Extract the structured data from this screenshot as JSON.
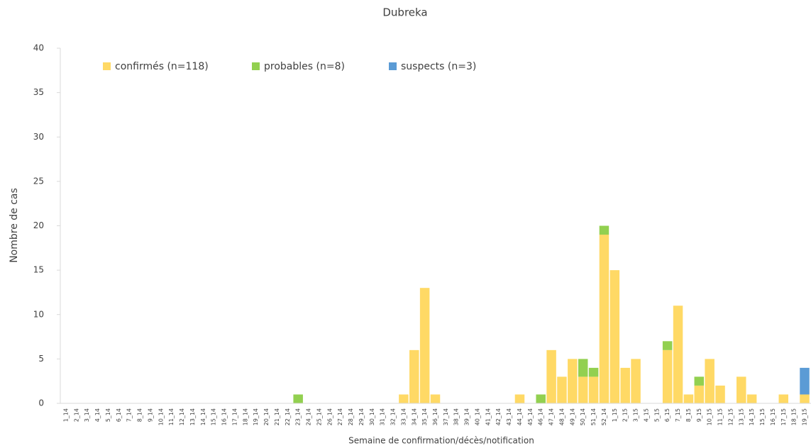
{
  "chart_data": {
    "type": "stacked_bar",
    "title": "Dubreka",
    "x_label": "Semaine de confirmation/décès/notification",
    "y_label": "Nombre de cas",
    "categories": [
      "1_14",
      "2_14",
      "3_14",
      "4_14",
      "5_14",
      "6_14",
      "7_14",
      "8_14",
      "9_14",
      "10_14",
      "11_14",
      "12_14",
      "13_14",
      "14_14",
      "15_14",
      "16_14",
      "17_14",
      "18_14",
      "19_14",
      "20_14",
      "21_14",
      "22_14",
      "23_14",
      "24_14",
      "25_14",
      "26_14",
      "27_14",
      "28_14",
      "29_14",
      "30_14",
      "31_14",
      "32_14",
      "33_14",
      "34_14",
      "35_14",
      "36_14",
      "37_14",
      "38_14",
      "39_14",
      "40_14",
      "41_14",
      "42_14",
      "43_14",
      "44_14",
      "45_14",
      "46_14",
      "47_14",
      "48_14",
      "49_14",
      "50_14",
      "51_14",
      "52_14",
      "1_15",
      "2_15",
      "3_15",
      "4_15",
      "5_15",
      "6_15",
      "7_15",
      "8_15",
      "9_15",
      "10_15",
      "11_15",
      "12_15",
      "13_15",
      "14_15",
      "15_15",
      "16_15",
      "17_15",
      "18_15",
      "19_15"
    ],
    "series": [
      {
        "name": "confirmés (n=118)",
        "color": "#ffd965",
        "values": [
          0,
          0,
          0,
          0,
          0,
          0,
          0,
          0,
          0,
          0,
          0,
          0,
          0,
          0,
          0,
          0,
          0,
          0,
          0,
          0,
          0,
          0,
          0,
          0,
          0,
          0,
          0,
          0,
          0,
          0,
          0,
          0,
          1,
          6,
          13,
          1,
          0,
          0,
          0,
          0,
          0,
          0,
          0,
          1,
          0,
          0,
          6,
          3,
          5,
          3,
          3,
          19,
          15,
          4,
          5,
          0,
          0,
          6,
          11,
          1,
          2,
          5,
          2,
          0,
          3,
          1,
          0,
          0,
          1,
          0,
          1
        ]
      },
      {
        "name": "probables (n=8)",
        "color": "#92d050",
        "values": [
          0,
          0,
          0,
          0,
          0,
          0,
          0,
          0,
          0,
          0,
          0,
          0,
          0,
          0,
          0,
          0,
          0,
          0,
          0,
          0,
          0,
          0,
          1,
          0,
          0,
          0,
          0,
          0,
          0,
          0,
          0,
          0,
          0,
          0,
          0,
          0,
          0,
          0,
          0,
          0,
          0,
          0,
          0,
          0,
          0,
          1,
          0,
          0,
          0,
          2,
          1,
          1,
          0,
          0,
          0,
          0,
          0,
          1,
          0,
          0,
          1,
          0,
          0,
          0,
          0,
          0,
          0,
          0,
          0,
          0,
          0
        ]
      },
      {
        "name": "suspects (n=3)",
        "color": "#5b9bd5",
        "values": [
          0,
          0,
          0,
          0,
          0,
          0,
          0,
          0,
          0,
          0,
          0,
          0,
          0,
          0,
          0,
          0,
          0,
          0,
          0,
          0,
          0,
          0,
          0,
          0,
          0,
          0,
          0,
          0,
          0,
          0,
          0,
          0,
          0,
          0,
          0,
          0,
          0,
          0,
          0,
          0,
          0,
          0,
          0,
          0,
          0,
          0,
          0,
          0,
          0,
          0,
          0,
          0,
          0,
          0,
          0,
          0,
          0,
          0,
          0,
          0,
          0,
          0,
          0,
          0,
          0,
          0,
          0,
          0,
          0,
          0,
          3
        ]
      }
    ],
    "ylim": [
      0,
      40
    ],
    "yticks": [
      0,
      5,
      10,
      15,
      20,
      25,
      30,
      35,
      40
    ],
    "grid": false,
    "legend": "top-left"
  }
}
